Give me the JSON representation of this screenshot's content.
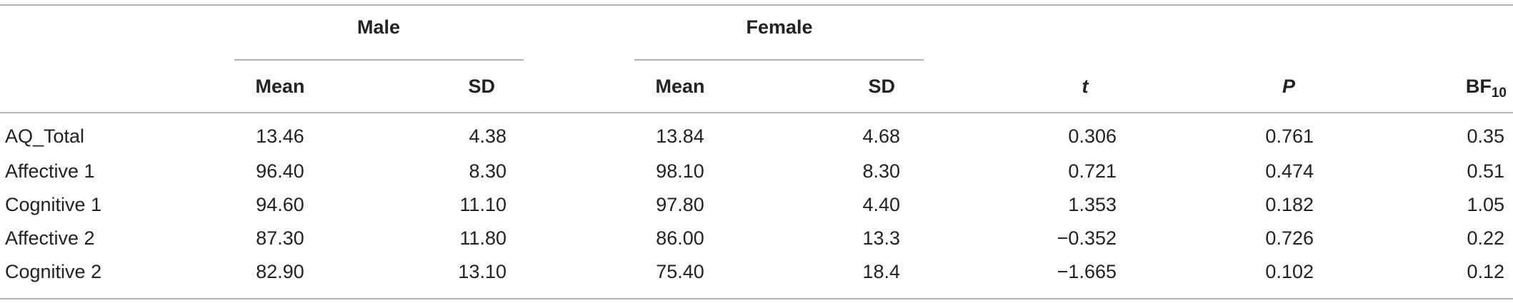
{
  "table": {
    "groups": [
      "Male",
      "Female"
    ],
    "columns": [
      {
        "text": "Mean"
      },
      {
        "text": "SD"
      },
      {
        "text": "Mean"
      },
      {
        "text": "SD"
      },
      {
        "text": "t"
      },
      {
        "text": "P"
      },
      {
        "text": "BF",
        "sub": "10"
      }
    ],
    "rows": [
      [
        "AQ_Total",
        "13.46",
        "4.38",
        "13.84",
        "4.68",
        "0.306",
        "0.761",
        "0.35"
      ],
      [
        "Affective 1",
        "96.40",
        "8.30",
        "98.10",
        "8.30",
        "0.721",
        "0.474",
        "0.51"
      ],
      [
        "Cognitive 1",
        "94.60",
        "11.10",
        "97.80",
        "4.40",
        "1.353",
        "0.182",
        "1.05"
      ],
      [
        "Affective 2",
        "87.30",
        "11.80",
        "86.00",
        "13.3",
        "−0.352",
        "0.726",
        "0.22"
      ],
      [
        "Cognitive 2",
        "82.90",
        "13.10",
        "75.40",
        "18.4",
        "−1.665",
        "0.102",
        "0.12"
      ]
    ]
  }
}
